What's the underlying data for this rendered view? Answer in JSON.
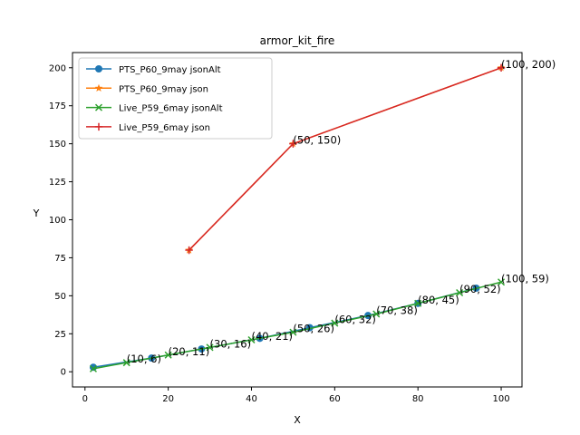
{
  "chart_data": {
    "type": "line",
    "title": "armor_kit_fire",
    "xlabel": "X",
    "ylabel": "Y",
    "xlim": [
      -3,
      105
    ],
    "ylim": [
      -10,
      210
    ],
    "xticks": [
      0,
      20,
      40,
      60,
      80,
      100
    ],
    "yticks": [
      0,
      25,
      50,
      75,
      100,
      125,
      150,
      175,
      200
    ],
    "grid": false,
    "legend_position": "top-left",
    "series": [
      {
        "name": "PTS_P60_9may jsonAlt",
        "color": "#1f77b4",
        "marker": "circle",
        "x": [
          2,
          16,
          28,
          42,
          54,
          68,
          80,
          94
        ],
        "y": [
          3,
          9,
          15,
          22,
          29,
          37,
          45,
          55
        ]
      },
      {
        "name": "PTS_P60_9may json",
        "color": "#ff7f0e",
        "marker": "star",
        "x": [
          25,
          50,
          100
        ],
        "y": [
          80,
          150,
          200
        ]
      },
      {
        "name": "Live_P59_6may jsonAlt",
        "color": "#2ca02c",
        "marker": "x",
        "x": [
          2,
          10,
          20,
          30,
          40,
          50,
          60,
          70,
          80,
          90,
          100
        ],
        "y": [
          2,
          6,
          11,
          16,
          21,
          26,
          32,
          38,
          45,
          52,
          59
        ]
      },
      {
        "name": "Live_P59_6may json",
        "color": "#d62728",
        "marker": "plus",
        "x": [
          25,
          50,
          100
        ],
        "y": [
          80,
          150,
          200
        ]
      }
    ],
    "annotations": [
      {
        "text": "(10, 6)",
        "x": 10,
        "y": 6
      },
      {
        "text": "(20, 11)",
        "x": 20,
        "y": 11
      },
      {
        "text": "(30, 16)",
        "x": 30,
        "y": 16
      },
      {
        "text": "(40, 21)",
        "x": 40,
        "y": 21
      },
      {
        "text": "(50, 26)",
        "x": 50,
        "y": 26
      },
      {
        "text": "(60, 32)",
        "x": 60,
        "y": 32
      },
      {
        "text": "(70, 38)",
        "x": 70,
        "y": 38
      },
      {
        "text": "(80, 45)",
        "x": 80,
        "y": 45
      },
      {
        "text": "(90, 52)",
        "x": 90,
        "y": 52
      },
      {
        "text": "(100, 59)",
        "x": 100,
        "y": 59
      },
      {
        "text": "(50, 150)",
        "x": 50,
        "y": 150
      },
      {
        "text": "(100, 200)",
        "x": 100,
        "y": 200
      }
    ]
  }
}
